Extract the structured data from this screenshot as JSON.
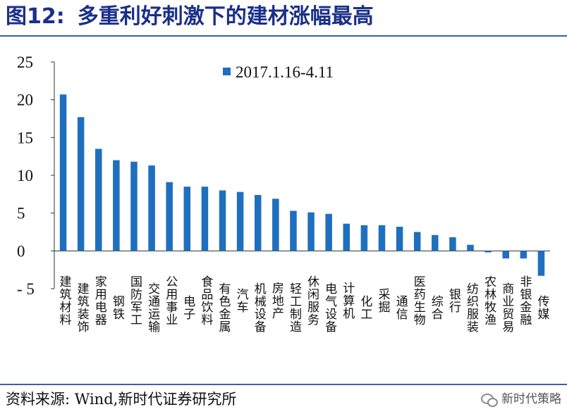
{
  "header": {
    "figure_label": "图12:",
    "title": "多重利好刺激下的建材涨幅最高"
  },
  "footer": {
    "source": "资料来源:  Wind,新时代证券研究所",
    "watermark": "新时代策略",
    "watermark_icon": "wechat-icon"
  },
  "colors": {
    "bar": "#1f6fbf",
    "title": "#1a2f8a",
    "rule": "#3a5fb0"
  },
  "chart_data": {
    "type": "bar",
    "title": "",
    "xlabel": "",
    "ylabel": "",
    "ylim": [
      -5,
      25
    ],
    "yticks": [
      25,
      20,
      15,
      10,
      5,
      0,
      -5
    ],
    "ytick_labels": [
      "25",
      "20",
      "15",
      "10",
      "5",
      "0",
      "- 5"
    ],
    "grid": false,
    "legend_position": "top-center",
    "series": [
      {
        "name": "2017.1.16-4.11",
        "values": [
          20.7,
          17.7,
          13.5,
          12.0,
          11.8,
          11.3,
          9.1,
          8.5,
          8.5,
          8.0,
          7.8,
          7.4,
          6.9,
          5.3,
          5.1,
          4.9,
          3.6,
          3.4,
          3.4,
          3.2,
          2.5,
          2.1,
          1.8,
          0.8,
          -0.2,
          -1.0,
          -1.0,
          -3.3
        ]
      }
    ],
    "categories": [
      "建筑材料",
      "建筑装饰",
      "家用电器",
      "钢铁",
      "国防军工",
      "交通运输",
      "公用事业",
      "电子",
      "食品饮料",
      "有色金属",
      "汽车",
      "机械设备",
      "房地产",
      "轻工制造",
      "休闲服务",
      "电气设备",
      "计算机",
      "化工",
      "采掘",
      "通信",
      "医药生物",
      "综合",
      "银行",
      "纺织服装",
      "农林牧渔",
      "商业贸易",
      "非银金融",
      "传媒"
    ]
  }
}
